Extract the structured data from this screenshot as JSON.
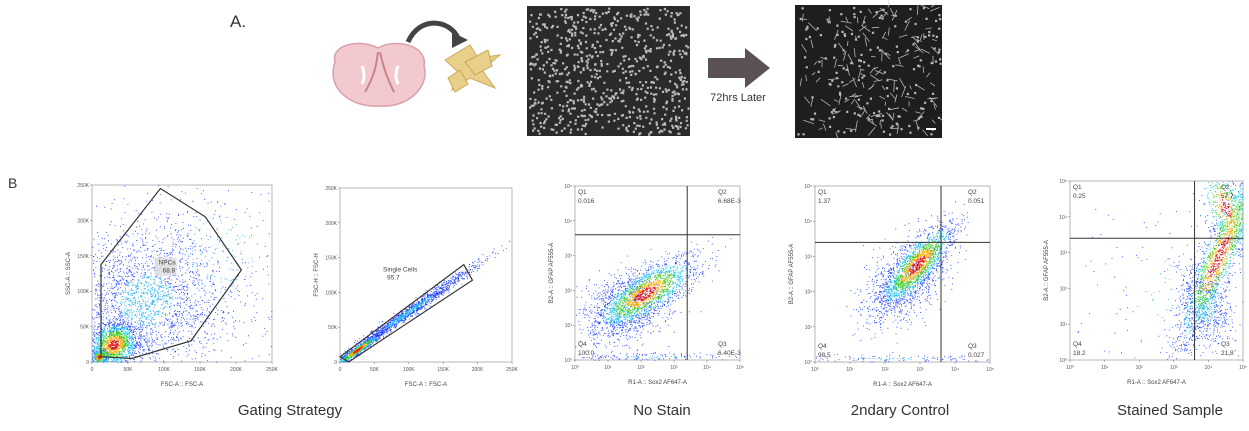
{
  "panel_a": {
    "label": "A.",
    "arrow_label": "72hrs Later"
  },
  "panel_b": {
    "label": "B",
    "captions": [
      "Gating Strategy",
      "No Stain",
      "2ndary Control",
      "Stained Sample"
    ],
    "plots": [
      {
        "x_label": "FSC-A :: FSC-A",
        "y_label": "SSC-A :: SSC-A",
        "x_ticks": [
          "0",
          "50K",
          "100K",
          "150K",
          "200K",
          "250K"
        ],
        "y_ticks": [
          "0",
          "50K",
          "100K",
          "150K",
          "200K",
          "250K"
        ],
        "gate": {
          "name": "NPCs",
          "value": "68.8"
        }
      },
      {
        "x_label": "FSC-A :: FSC-A",
        "y_label": "FSC-H :: FSC-H",
        "x_ticks": [
          "0",
          "50K",
          "100K",
          "150K",
          "200K",
          "250K"
        ],
        "y_ticks": [
          "0",
          "50K",
          "100K",
          "150K",
          "200K",
          "250K"
        ],
        "gate": {
          "name": "Single Cells",
          "value": "95.7"
        }
      },
      {
        "x_label": "R1-A :: Sox2 AF647-A",
        "y_label": "B2-A :: GFAP AF555-A",
        "x_ticks": [
          "10⁰",
          "10¹",
          "10²",
          "10³",
          "10⁴",
          "10⁵"
        ],
        "y_ticks": [
          "10⁰",
          "10¹",
          "10²",
          "10³",
          "10⁴",
          "10⁵"
        ],
        "quadrants": [
          {
            "name": "Q1",
            "value": "0.016"
          },
          {
            "name": "Q2",
            "value": "6.68E-3"
          },
          {
            "name": "Q3",
            "value": "6.40E-3"
          },
          {
            "name": "Q4",
            "value": "100.0"
          }
        ]
      },
      {
        "x_label": "R1-A :: Sox2 AF647-A",
        "y_label": "B2-A :: GFAP AF555-A",
        "x_ticks": [
          "10⁰",
          "10¹",
          "10²",
          "10³",
          "10⁴",
          "10⁵"
        ],
        "y_ticks": [
          "10⁰",
          "10¹",
          "10²",
          "10³",
          "10⁴",
          "10⁵"
        ],
        "quadrants": [
          {
            "name": "Q1",
            "value": "1.37"
          },
          {
            "name": "Q2",
            "value": "0.051"
          },
          {
            "name": "Q3",
            "value": "0.027"
          },
          {
            "name": "Q4",
            "value": "98.5"
          }
        ]
      },
      {
        "x_label": "R1-A :: Sox2 AF647-A",
        "y_label": "B2-A :: GFAP AF555-A",
        "x_ticks": [
          "10⁰",
          "10¹",
          "10²",
          "10³",
          "10⁴",
          "10⁵"
        ],
        "y_ticks": [
          "10⁰",
          "10¹",
          "10²",
          "10³",
          "10⁴",
          "10⁵"
        ],
        "quadrants": [
          {
            "name": "Q1",
            "value": "0.25"
          },
          {
            "name": "Q2",
            "value": "57.7"
          },
          {
            "name": "Q3",
            "value": "21.8"
          },
          {
            "name": "Q4",
            "value": "18.2"
          }
        ]
      }
    ]
  }
}
